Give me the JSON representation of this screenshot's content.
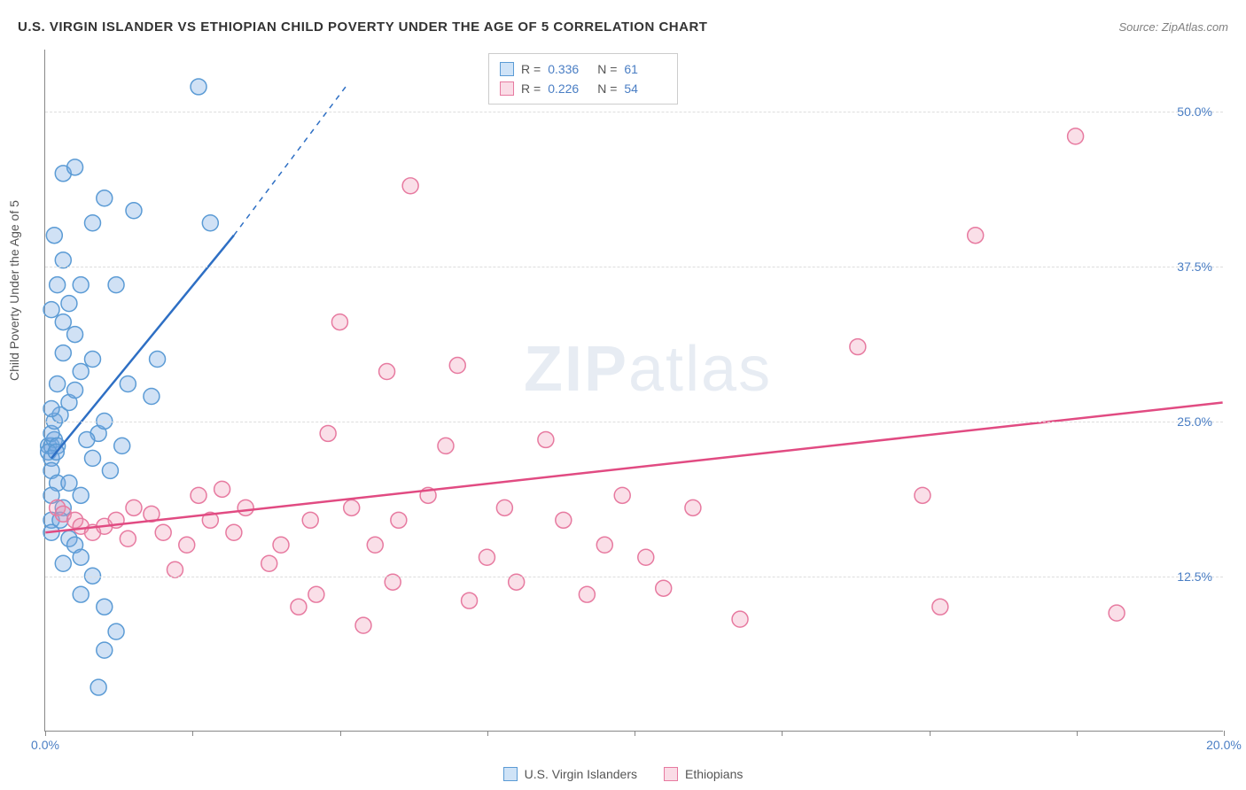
{
  "title": "U.S. VIRGIN ISLANDER VS ETHIOPIAN CHILD POVERTY UNDER THE AGE OF 5 CORRELATION CHART",
  "source": "Source: ZipAtlas.com",
  "y_axis_title": "Child Poverty Under the Age of 5",
  "watermark_a": "ZIP",
  "watermark_b": "atlas",
  "chart": {
    "type": "scatter",
    "background_color": "#ffffff",
    "grid_color": "#dddddd",
    "axis_color": "#888888",
    "xlim": [
      0,
      20
    ],
    "ylim": [
      0,
      55
    ],
    "x_ticks": [
      0,
      2.5,
      5,
      7.5,
      10,
      12.5,
      15,
      17.5,
      20
    ],
    "x_tick_labels": {
      "0": "0.0%",
      "20": "20.0%"
    },
    "y_gridlines": [
      12.5,
      25,
      37.5,
      50
    ],
    "y_tick_labels": {
      "12.5": "12.5%",
      "25": "25.0%",
      "37.5": "37.5%",
      "50": "50.0%"
    },
    "marker_radius": 9,
    "marker_stroke_width": 1.5,
    "trend_line_width": 2.5,
    "series": [
      {
        "name": "U.S. Virgin Islanders",
        "fill": "rgba(120,170,225,0.35)",
        "stroke": "#5b9bd5",
        "swatch_fill": "#cfe3f7",
        "swatch_stroke": "#5b9bd5",
        "trend_color": "#2e6fc4",
        "R": "0.336",
        "N": "61",
        "trend": {
          "x1": 0.1,
          "y1": 22,
          "x2": 3.2,
          "y2": 40,
          "dash_x2": 5.1,
          "dash_y2": 52
        },
        "points": [
          [
            0.05,
            23
          ],
          [
            0.1,
            23
          ],
          [
            0.15,
            23.5
          ],
          [
            0.1,
            24
          ],
          [
            0.2,
            23
          ],
          [
            0.05,
            22.5
          ],
          [
            0.1,
            22
          ],
          [
            0.18,
            22.5
          ],
          [
            0.1,
            21
          ],
          [
            0.2,
            20
          ],
          [
            0.1,
            19
          ],
          [
            0.3,
            18
          ],
          [
            0.1,
            17
          ],
          [
            0.25,
            17
          ],
          [
            0.1,
            16
          ],
          [
            0.4,
            15.5
          ],
          [
            0.5,
            15
          ],
          [
            0.6,
            14
          ],
          [
            0.3,
            13.5
          ],
          [
            0.8,
            12.5
          ],
          [
            0.6,
            11
          ],
          [
            1.0,
            10
          ],
          [
            1.2,
            8
          ],
          [
            1.0,
            6.5
          ],
          [
            0.9,
            3.5
          ],
          [
            0.15,
            25
          ],
          [
            0.25,
            25.5
          ],
          [
            0.1,
            26
          ],
          [
            0.4,
            26.5
          ],
          [
            0.5,
            27.5
          ],
          [
            0.2,
            28
          ],
          [
            0.6,
            29
          ],
          [
            0.8,
            30
          ],
          [
            0.3,
            30.5
          ],
          [
            0.5,
            32
          ],
          [
            0.3,
            33
          ],
          [
            0.1,
            34
          ],
          [
            0.4,
            34.5
          ],
          [
            0.2,
            36
          ],
          [
            0.6,
            36
          ],
          [
            0.3,
            38
          ],
          [
            0.15,
            40
          ],
          [
            0.8,
            41
          ],
          [
            1.0,
            43
          ],
          [
            0.3,
            45
          ],
          [
            0.5,
            45.5
          ],
          [
            1.2,
            36
          ],
          [
            1.4,
            28
          ],
          [
            1.8,
            27
          ],
          [
            1.5,
            42
          ],
          [
            2.6,
            52
          ],
          [
            2.8,
            41
          ],
          [
            1.9,
            30
          ],
          [
            1.3,
            23
          ],
          [
            0.9,
            24
          ],
          [
            0.7,
            23.5
          ],
          [
            0.8,
            22
          ],
          [
            1.1,
            21
          ],
          [
            1.0,
            25
          ],
          [
            0.6,
            19
          ],
          [
            0.4,
            20
          ]
        ]
      },
      {
        "name": "Ethiopians",
        "fill": "rgba(240,150,180,0.30)",
        "stroke": "#e77aa0",
        "swatch_fill": "#fadce6",
        "swatch_stroke": "#e77aa0",
        "trend_color": "#e14b82",
        "R": "0.226",
        "N": "54",
        "trend": {
          "x1": 0,
          "y1": 16,
          "x2": 20,
          "y2": 26.5
        },
        "points": [
          [
            0.2,
            18
          ],
          [
            0.3,
            17.5
          ],
          [
            0.5,
            17
          ],
          [
            0.6,
            16.5
          ],
          [
            0.8,
            16
          ],
          [
            1.0,
            16.5
          ],
          [
            1.2,
            17
          ],
          [
            1.4,
            15.5
          ],
          [
            1.5,
            18
          ],
          [
            1.8,
            17.5
          ],
          [
            2.0,
            16
          ],
          [
            2.2,
            13
          ],
          [
            2.4,
            15
          ],
          [
            2.6,
            19
          ],
          [
            2.8,
            17
          ],
          [
            3.0,
            19.5
          ],
          [
            3.2,
            16
          ],
          [
            3.4,
            18
          ],
          [
            3.8,
            13.5
          ],
          [
            4.0,
            15
          ],
          [
            4.3,
            10
          ],
          [
            4.5,
            17
          ],
          [
            4.6,
            11
          ],
          [
            4.8,
            24
          ],
          [
            5.0,
            33
          ],
          [
            5.2,
            18
          ],
          [
            5.4,
            8.5
          ],
          [
            5.6,
            15
          ],
          [
            5.8,
            29
          ],
          [
            5.9,
            12
          ],
          [
            6.0,
            17
          ],
          [
            6.2,
            44
          ],
          [
            6.5,
            19
          ],
          [
            6.8,
            23
          ],
          [
            7.0,
            29.5
          ],
          [
            7.2,
            10.5
          ],
          [
            7.5,
            14
          ],
          [
            7.8,
            18
          ],
          [
            8.0,
            12
          ],
          [
            8.5,
            23.5
          ],
          [
            8.8,
            17
          ],
          [
            9.2,
            11
          ],
          [
            9.5,
            15
          ],
          [
            9.8,
            19
          ],
          [
            10.2,
            14
          ],
          [
            10.5,
            11.5
          ],
          [
            11.0,
            18
          ],
          [
            11.8,
            9
          ],
          [
            13.8,
            31
          ],
          [
            15.2,
            10
          ],
          [
            15.8,
            40
          ],
          [
            17.5,
            48
          ],
          [
            18.2,
            9.5
          ],
          [
            14.9,
            19
          ]
        ]
      }
    ]
  },
  "legend": {
    "series1_label": "U.S. Virgin Islanders",
    "series2_label": "Ethiopians"
  }
}
